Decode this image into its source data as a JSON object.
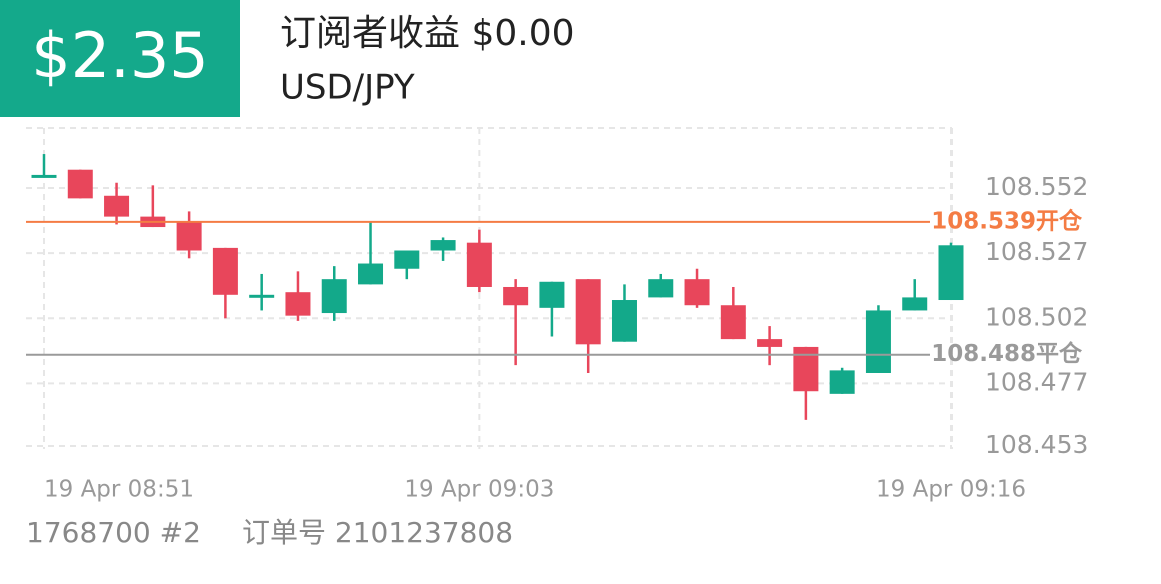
{
  "header": {
    "profit": "$2.35",
    "title": "订阅者收益 $0.00",
    "symbol": "USD/JPY"
  },
  "chart_data": {
    "type": "candlestick",
    "categories": [
      "19 Apr  08:51",
      null,
      null,
      null,
      null,
      null,
      null,
      null,
      null,
      null,
      null,
      null,
      "19 Apr  09:03",
      null,
      null,
      null,
      null,
      null,
      null,
      null,
      null,
      null,
      null,
      null,
      null,
      "19 Apr  09:16"
    ],
    "open": [
      108.556,
      108.559,
      108.549,
      108.541,
      108.539,
      108.529,
      108.51,
      108.512,
      108.504,
      108.515,
      108.521,
      108.528,
      108.531,
      108.514,
      108.506,
      108.517,
      108.493,
      108.51,
      108.517,
      108.507,
      108.494,
      108.491,
      108.473,
      108.481,
      108.505,
      108.509
    ],
    "high": [
      108.565,
      108.559,
      108.554,
      108.553,
      108.543,
      108.529,
      108.519,
      108.52,
      108.522,
      108.539,
      108.528,
      108.533,
      108.536,
      108.517,
      108.516,
      108.517,
      108.515,
      108.519,
      108.521,
      108.514,
      108.499,
      108.491,
      108.483,
      108.507,
      108.517,
      108.531
    ],
    "low": [
      108.556,
      108.548,
      108.538,
      108.537,
      108.525,
      108.502,
      108.505,
      108.501,
      108.501,
      108.515,
      108.517,
      108.524,
      108.512,
      108.484,
      108.495,
      108.481,
      108.493,
      108.51,
      108.506,
      108.494,
      108.484,
      108.463,
      108.473,
      108.481,
      108.505,
      108.509
    ],
    "close": [
      108.557,
      108.548,
      108.541,
      108.537,
      108.528,
      108.511,
      108.511,
      108.503,
      108.517,
      108.523,
      108.528,
      108.532,
      108.514,
      108.507,
      108.516,
      108.492,
      108.509,
      108.517,
      108.507,
      108.494,
      108.491,
      108.474,
      108.482,
      108.505,
      108.51,
      108.53
    ],
    "colors": {
      "up": "#13a98a",
      "down": "#e8465b"
    },
    "ylim": [
      108.448,
      108.575
    ],
    "yticks": [
      108.453,
      108.477,
      108.502,
      108.527,
      108.552
    ],
    "grid": true,
    "lines": [
      {
        "value": 108.539,
        "label": "108.539开仓",
        "color": "#f47c44"
      },
      {
        "value": 108.488,
        "label": "108.488平仓",
        "color": "#9a9a9a"
      }
    ]
  },
  "footer": {
    "account": "1768700 #2",
    "order": "订单号 2101237808"
  }
}
